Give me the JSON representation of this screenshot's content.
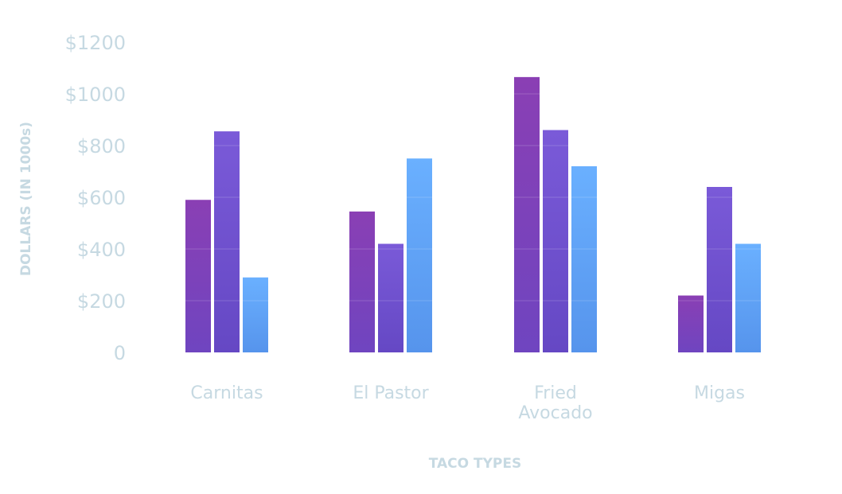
{
  "chart_data": {
    "type": "bar",
    "categories": [
      [
        "Carnitas"
      ],
      [
        "El Pastor"
      ],
      [
        "Fried",
        "Avocado"
      ],
      [
        "Migas"
      ]
    ],
    "series": [
      {
        "values": [
          590,
          545,
          1065,
          220
        ]
      },
      {
        "values": [
          855,
          420,
          860,
          640
        ]
      },
      {
        "values": [
          290,
          750,
          720,
          420
        ]
      }
    ],
    "colors": [
      [
        "#8a3fb4",
        "#6f45c0"
      ],
      [
        "#7a5ad8",
        "#6548c4"
      ],
      [
        "#6ab0ff",
        "#5694ec"
      ]
    ],
    "ylim": [
      0,
      1200
    ],
    "yticks": [
      0,
      200,
      400,
      600,
      800,
      1000,
      1200
    ],
    "ytick_labels": [
      "0",
      "$200",
      "$400",
      "$600",
      "$800",
      "$1000",
      "$1200"
    ],
    "xlabel": "TACO TYPES",
    "ylabel": "DOLLARS (IN 1000s)",
    "grid": true
  }
}
